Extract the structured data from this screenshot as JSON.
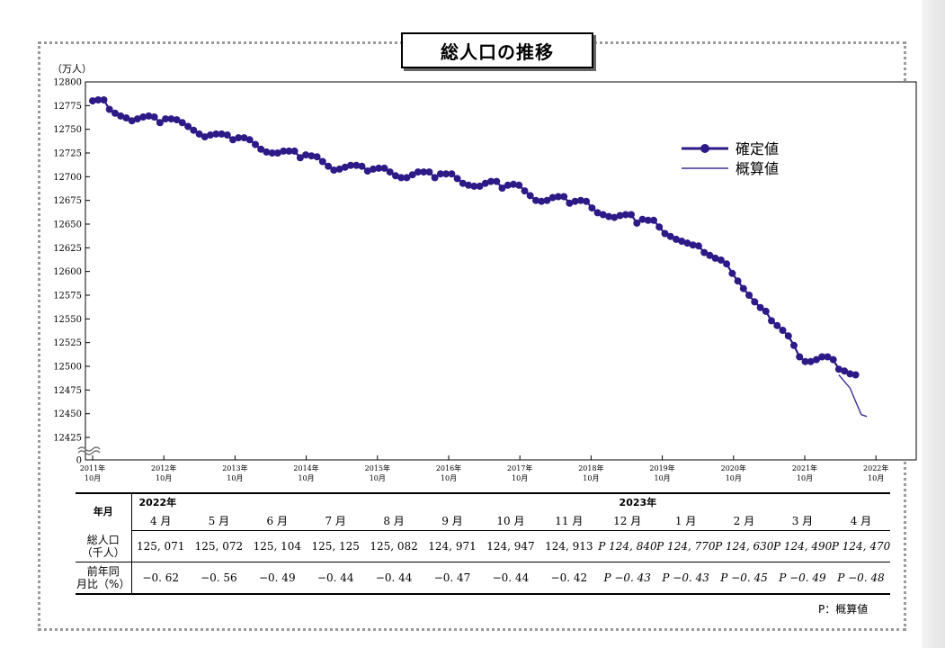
{
  "title": "総人口の推移",
  "y_unit": "（万人）",
  "chart_data": {
    "type": "line",
    "title": "総人口の推移",
    "ylabel": "（万人）",
    "ylim": [
      12425,
      12800
    ],
    "y_ticks": [
      12800,
      12775,
      12750,
      12725,
      12700,
      12675,
      12650,
      12625,
      12600,
      12575,
      12550,
      12525,
      12500,
      12475,
      12450,
      12425
    ],
    "y_axis_break": true,
    "y_zero_label": "0",
    "x_ticks": [
      {
        "year": "2011年",
        "month": "10月"
      },
      {
        "year": "2012年",
        "month": "10月"
      },
      {
        "year": "2013年",
        "month": "10月"
      },
      {
        "year": "2014年",
        "month": "10月"
      },
      {
        "year": "2015年",
        "month": "10月"
      },
      {
        "year": "2016年",
        "month": "10月"
      },
      {
        "year": "2017年",
        "month": "10月"
      },
      {
        "year": "2018年",
        "month": "10月"
      },
      {
        "year": "2019年",
        "month": "10月"
      },
      {
        "year": "2020年",
        "month": "10月"
      },
      {
        "year": "2021年",
        "month": "10月"
      },
      {
        "year": "2022年",
        "month": "10月"
      }
    ],
    "legend_position": "top-right",
    "series": [
      {
        "name": "確定値",
        "color": "#2e1a87",
        "marker": "circle",
        "start": "2011-10",
        "values": [
          12780,
          12781,
          12781,
          12771,
          12767,
          12764,
          12762,
          12759,
          12761,
          12763,
          12764,
          12763,
          12757,
          12761,
          12761,
          12760,
          12757,
          12753,
          12749,
          12745,
          12742,
          12744,
          12745,
          12745,
          12744,
          12739,
          12741,
          12741,
          12739,
          12734,
          12729,
          12726,
          12725,
          12725,
          12727,
          12727,
          12727,
          12720,
          12723,
          12722,
          12721,
          12716,
          12711,
          12707,
          12708,
          12710,
          12712,
          12712,
          12711,
          12706,
          12708,
          12709,
          12709,
          12705,
          12701,
          12699,
          12699,
          12702,
          12705,
          12705,
          12705,
          12699,
          12703,
          12703,
          12703,
          12698,
          12693,
          12691,
          12690,
          12690,
          12693,
          12695,
          12695,
          12688,
          12691,
          12692,
          12691,
          12685,
          12680,
          12675,
          12674,
          12675,
          12678,
          12679,
          12679,
          12672,
          12674,
          12675,
          12674,
          12667,
          12662,
          12660,
          12658,
          12657,
          12659,
          12660,
          12660,
          12651,
          12655,
          12654,
          12654,
          12647,
          12640,
          12637,
          12634,
          12632,
          12630,
          12628,
          12627,
          12620,
          12617,
          12614,
          12612,
          12608,
          12598,
          12590,
          12582,
          12575,
          12568,
          12562,
          12558,
          12548,
          12543,
          12538,
          12532,
          12522,
          12510,
          12505,
          12505,
          12507,
          12510,
          12510,
          12507,
          12497,
          12495,
          12492,
          12491
        ]
      },
      {
        "name": "概算値",
        "color": "#3b2f95",
        "marker": "none",
        "start": "2022-11",
        "values": [
          12491,
          12484,
          12477,
          12463,
          12449,
          12447
        ]
      }
    ]
  },
  "table": {
    "row_headers": {
      "period": "年月",
      "population": "総人口\n（千人）",
      "change": "前年同\n月比（%）"
    },
    "year_labels": [
      {
        "label": "2022年",
        "col": 0
      },
      {
        "label": "2023年",
        "col": 8
      }
    ],
    "columns": [
      {
        "month": "4 月",
        "population": "125, 071",
        "change": "−0. 62",
        "estimate": false
      },
      {
        "month": "5 月",
        "population": "125, 072",
        "change": "−0. 56",
        "estimate": false
      },
      {
        "month": "6 月",
        "population": "125, 104",
        "change": "−0. 49",
        "estimate": false
      },
      {
        "month": "7 月",
        "population": "125, 125",
        "change": "−0. 44",
        "estimate": false
      },
      {
        "month": "8 月",
        "population": "125, 082",
        "change": "−0. 44",
        "estimate": false
      },
      {
        "month": "9 月",
        "population": "124, 971",
        "change": "−0. 47",
        "estimate": false
      },
      {
        "month": "10 月",
        "population": "124, 947",
        "change": "−0. 44",
        "estimate": false
      },
      {
        "month": "11 月",
        "population": "124, 913",
        "change": "−0. 42",
        "estimate": false
      },
      {
        "month": "12 月",
        "population": "P 124, 840",
        "change": "P −0. 43",
        "estimate": true
      },
      {
        "month": "1 月",
        "population": "P 124, 770",
        "change": "P −0. 43",
        "estimate": true
      },
      {
        "month": "2 月",
        "population": "P 124, 630",
        "change": "P −0. 45",
        "estimate": true
      },
      {
        "month": "3 月",
        "population": "P 124, 490",
        "change": "P −0. 49",
        "estimate": true
      },
      {
        "month": "4 月",
        "population": "P 124, 470",
        "change": "P −0. 48",
        "estimate": true
      }
    ]
  },
  "note": "P：概算値"
}
